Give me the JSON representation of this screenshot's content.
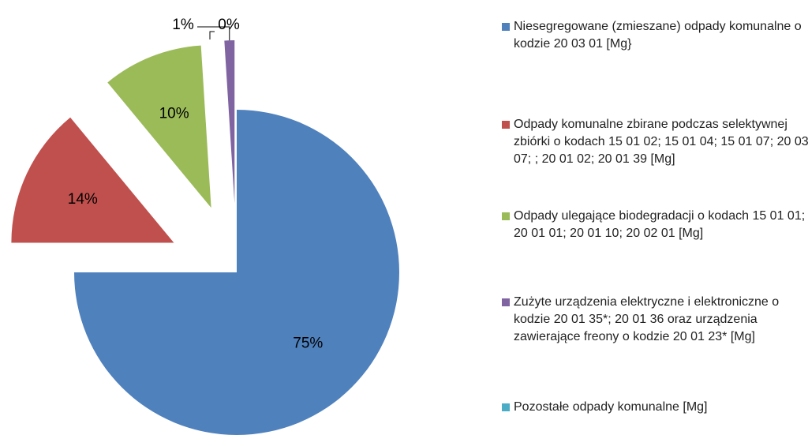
{
  "chart_data": {
    "type": "pie",
    "categories": [
      "Niesegregowane (zmieszane) odpady komunalne o kodzie 20 03 01 [Mg}",
      "Odpady komunalne zbirane podczas selektywnej zbiórki o kodach 15 01 02; 15 01 04; 15 01 07;  20 03 07; ; 20 01 02; 20 01 39 [Mg]",
      "Odpady ulegające biodegradacji o kodach 15 01 01; 20 01 01; 20 01 10; 20 02 01 [Mg]",
      "Zużyte urządzenia elektryczne i elektroniczne o kodzie 20 01 35*; 20 01 36 oraz urządzenia zawierające freony o kodzie 20 01 23* [Mg]",
      "Pozostałe odpady komunalne [Mg]"
    ],
    "values": [
      75,
      14,
      10,
      1,
      0
    ],
    "value_labels": [
      "75%",
      "14%",
      "10%",
      "1%",
      "0%"
    ],
    "colors": [
      "#4f81bd",
      "#c0504d",
      "#9bbb59",
      "#8064a2",
      "#4bacc6"
    ],
    "legend": "right"
  }
}
